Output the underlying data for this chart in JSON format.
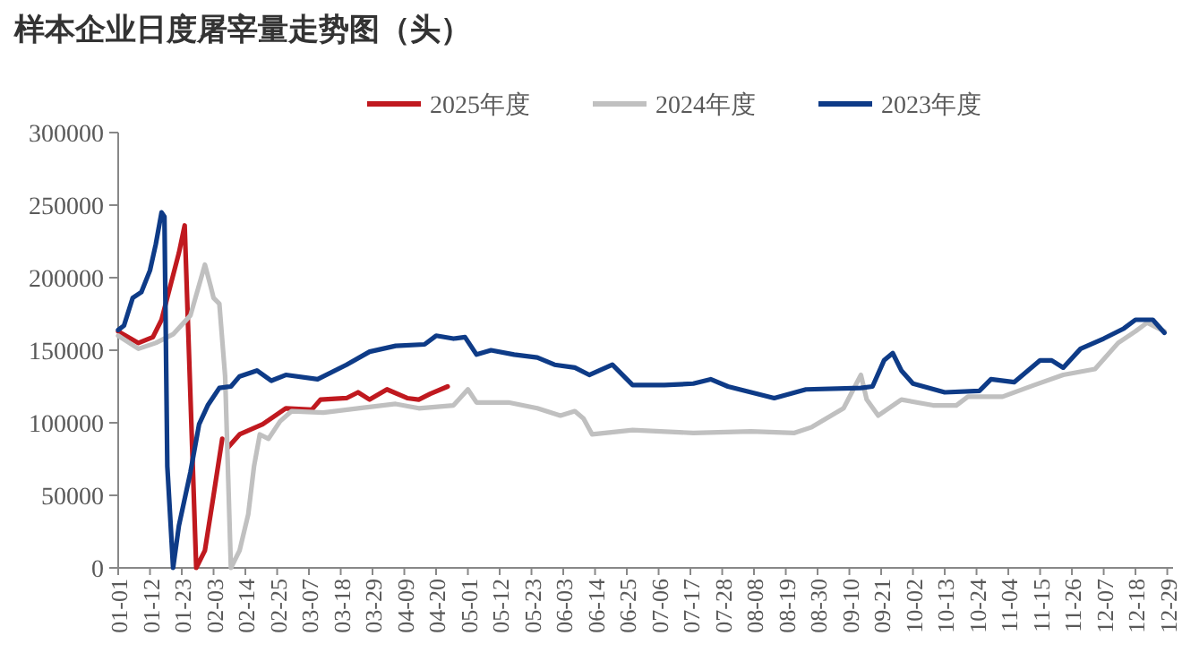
{
  "chart_data": {
    "type": "line",
    "title": "样本企业日度屠宰量走势图（头）",
    "legend": "top",
    "marker": "none",
    "line_style": "solid",
    "grid": false,
    "ylim": [
      0,
      300000
    ],
    "yticks": [
      0,
      50000,
      100000,
      150000,
      200000,
      250000,
      300000
    ],
    "xlim": [
      "--01-01",
      "--12-31"
    ],
    "xticks": [
      {
        "value": "--01-01",
        "label": "01-01"
      },
      {
        "value": "--01-12",
        "label": "01-12"
      },
      {
        "value": "--01-23",
        "label": "01-23"
      },
      {
        "value": "--02-03",
        "label": "02-03"
      },
      {
        "value": "--02-14",
        "label": "02-14"
      },
      {
        "value": "--02-25",
        "label": "02-25"
      },
      {
        "value": "--03-07",
        "label": "03-07"
      },
      {
        "value": "--03-18",
        "label": "03-18"
      },
      {
        "value": "--03-29",
        "label": "03-29"
      },
      {
        "value": "--04-09",
        "label": "04-09"
      },
      {
        "value": "--04-20",
        "label": "04-20"
      },
      {
        "value": "--05-01",
        "label": "05-01"
      },
      {
        "value": "--05-12",
        "label": "05-12"
      },
      {
        "value": "--05-23",
        "label": "05-23"
      },
      {
        "value": "--06-03",
        "label": "06-03"
      },
      {
        "value": "--06-14",
        "label": "06-14"
      },
      {
        "value": "--06-25",
        "label": "06-25"
      },
      {
        "value": "--07-06",
        "label": "07-06"
      },
      {
        "value": "--07-17",
        "label": "07-17"
      },
      {
        "value": "--07-28",
        "label": "07-28"
      },
      {
        "value": "--08-08",
        "label": "08-08"
      },
      {
        "value": "--08-19",
        "label": "08-19"
      },
      {
        "value": "--08-30",
        "label": "08-30"
      },
      {
        "value": "--09-10",
        "label": "09-10"
      },
      {
        "value": "--09-21",
        "label": "09-21"
      },
      {
        "value": "--10-02",
        "label": "10-02"
      },
      {
        "value": "--10-13",
        "label": "10-13"
      },
      {
        "value": "--10-24",
        "label": "10-24"
      },
      {
        "value": "--11-04",
        "label": "11-04"
      },
      {
        "value": "--11-15",
        "label": "11-15"
      },
      {
        "value": "--11-26",
        "label": "11-26"
      },
      {
        "value": "--12-07",
        "label": "12-07"
      },
      {
        "value": "--12-18",
        "label": "12-18"
      },
      {
        "value": "--12-29",
        "label": "12-29"
      }
    ],
    "series": [
      {
        "name": "2025年度",
        "color": "#c0191f",
        "x": [
          "--01-01",
          "--01-08",
          "--01-13",
          "--01-16",
          "--01-19",
          "--01-22",
          "--01-24",
          "--01-28",
          "--01-31",
          "--02-03",
          "--02-06",
          "--02-07",
          "--02-08",
          "--02-12",
          "--02-20",
          "--02-28",
          "--03-08",
          "--03-11",
          "--03-20",
          "--03-24",
          "--03-28",
          "--04-03",
          "--04-10",
          "--04-14",
          "--04-18",
          "--04-24"
        ],
        "values": [
          163000,
          155000,
          159000,
          171000,
          194000,
          217000,
          236000,
          0,
          12000,
          50000,
          89000,
          null,
          83000,
          92000,
          99000,
          110000,
          109000,
          116000,
          117000,
          121000,
          116000,
          123000,
          117000,
          116000,
          120000,
          125000
        ]
      },
      {
        "name": "2024年度",
        "color": "#c0c0c0",
        "x": [
          "--01-01",
          "--01-08",
          "--01-14",
          "--01-20",
          "--01-26",
          "--01-31",
          "--02-02",
          "--02-03",
          "--02-05",
          "--02-07",
          "--02-09",
          "--02-12",
          "--02-15",
          "--02-17",
          "--02-19",
          "--02-22",
          "--02-26",
          "--03-01",
          "--03-12",
          "--03-24",
          "--04-06",
          "--04-14",
          "--04-26",
          "--05-01",
          "--05-04",
          "--05-15",
          "--05-25",
          "--06-02",
          "--06-07",
          "--06-10",
          "--06-13",
          "--06-27",
          "--07-18",
          "--08-07",
          "--08-22",
          "--08-28",
          "--09-08",
          "--09-14",
          "--09-16",
          "--09-20",
          "--09-28",
          "--10-09",
          "--10-17",
          "--10-21",
          "--11-02",
          "--11-13",
          "--11-23",
          "--12-04",
          "--12-12",
          "--12-18",
          "--12-22",
          "--12-28"
        ],
        "values": [
          160000,
          151000,
          155000,
          161000,
          174000,
          209000,
          194000,
          186000,
          182000,
          132000,
          0,
          12000,
          37000,
          70000,
          92000,
          89000,
          101000,
          108000,
          107000,
          110000,
          113000,
          110000,
          112000,
          123000,
          114000,
          114000,
          110000,
          105000,
          108000,
          103000,
          92000,
          95000,
          93000,
          94000,
          93000,
          97000,
          110000,
          133000,
          116000,
          105000,
          116000,
          112000,
          112000,
          118000,
          118000,
          126000,
          133000,
          137000,
          155000,
          163000,
          169000,
          163000
        ]
      },
      {
        "name": "2023年度",
        "color": "#0e3b87",
        "x": [
          "--01-01",
          "--01-03",
          "--01-06",
          "--01-09",
          "--01-12",
          "--01-14",
          "--01-16",
          "--01-17",
          "--01-18",
          "--01-20",
          "--01-22",
          "--01-26",
          "--01-29",
          "--02-01",
          "--02-05",
          "--02-09",
          "--02-12",
          "--02-18",
          "--02-23",
          "--02-28",
          "--03-10",
          "--03-20",
          "--03-28",
          "--04-06",
          "--04-16",
          "--04-20",
          "--04-26",
          "--04-30",
          "--05-04",
          "--05-09",
          "--05-17",
          "--05-25",
          "--05-31",
          "--06-07",
          "--06-12",
          "--06-20",
          "--06-27",
          "--07-08",
          "--07-18",
          "--07-24",
          "--07-30",
          "--08-07",
          "--08-15",
          "--08-26",
          "--09-14",
          "--09-18",
          "--09-22",
          "--09-25",
          "--09-28",
          "--10-02",
          "--10-13",
          "--10-25",
          "--10-29",
          "--11-06",
          "--11-15",
          "--11-19",
          "--11-23",
          "--11-29",
          "--12-07",
          "--12-14",
          "--12-18",
          "--12-24",
          "--12-28"
        ],
        "values": [
          164000,
          167000,
          186000,
          190000,
          205000,
          223000,
          245000,
          242000,
          70000,
          0,
          29000,
          66000,
          99000,
          112000,
          124000,
          125000,
          132000,
          136000,
          129000,
          133000,
          130000,
          140000,
          149000,
          153000,
          154000,
          160000,
          158000,
          159000,
          147000,
          150000,
          147000,
          145000,
          140000,
          138000,
          133000,
          140000,
          126000,
          126000,
          127000,
          130000,
          125000,
          121000,
          117000,
          123000,
          124000,
          125000,
          143000,
          148000,
          136000,
          127000,
          121000,
          122000,
          130000,
          128000,
          143000,
          143000,
          138000,
          151000,
          158000,
          165000,
          171000,
          171000,
          162000
        ]
      }
    ]
  }
}
